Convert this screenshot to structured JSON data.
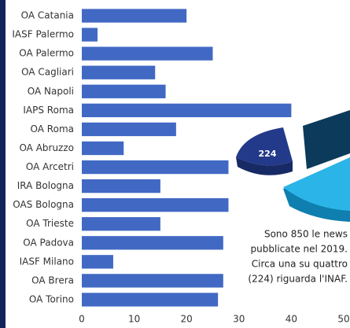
{
  "chart_data": {
    "type": "bar",
    "orientation": "horizontal",
    "categories": [
      "OA Catania",
      "IASF Palermo",
      "OA Palermo",
      "OA Cagliari",
      "OA Napoli",
      "IAPS Roma",
      "OA Roma",
      "OA Abruzzo",
      "OA Arcetri",
      "IRA Bologna",
      "OAS Bologna",
      "OA Trieste",
      "OA Padova",
      "IASF Milano",
      "OA Brera",
      "OA Torino"
    ],
    "values": [
      20,
      3,
      25,
      14,
      16,
      40,
      18,
      8,
      28,
      15,
      28,
      15,
      27,
      6,
      27,
      26
    ],
    "color": "#4169c4",
    "xlim": [
      0,
      50
    ],
    "xticks": [
      0,
      10,
      20,
      30,
      40,
      50
    ],
    "grid": false,
    "pie_label": "224",
    "note": [
      "Sono 850 le news",
      "pubblicate nel 2019.",
      "Circa una su quattro",
      "(224) riguarda l'INAF."
    ]
  }
}
